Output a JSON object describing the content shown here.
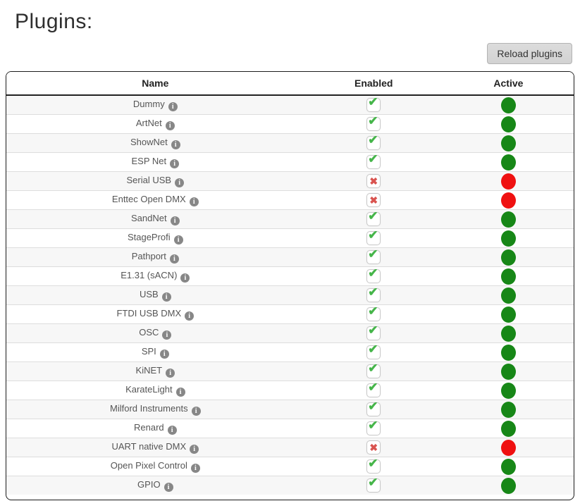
{
  "page": {
    "title": "Plugins:"
  },
  "toolbar": {
    "reload_label": "Reload plugins"
  },
  "icons": {
    "info": "i",
    "check": "✔",
    "cross": "✖"
  },
  "colors": {
    "active_green": "#178717",
    "inactive_red": "#ef1111",
    "check_green": "#45b549",
    "cross_red": "#d9534f"
  },
  "table": {
    "columns": [
      "Name",
      "Enabled",
      "Active"
    ],
    "rows": [
      {
        "name": "Dummy",
        "enabled": true,
        "active": true
      },
      {
        "name": "ArtNet",
        "enabled": true,
        "active": true
      },
      {
        "name": "ShowNet",
        "enabled": true,
        "active": true
      },
      {
        "name": "ESP Net",
        "enabled": true,
        "active": true
      },
      {
        "name": "Serial USB",
        "enabled": false,
        "active": false
      },
      {
        "name": "Enttec Open DMX",
        "enabled": false,
        "active": false
      },
      {
        "name": "SandNet",
        "enabled": true,
        "active": true
      },
      {
        "name": "StageProfi",
        "enabled": true,
        "active": true
      },
      {
        "name": "Pathport",
        "enabled": true,
        "active": true
      },
      {
        "name": "E1.31 (sACN)",
        "enabled": true,
        "active": true
      },
      {
        "name": "USB",
        "enabled": true,
        "active": true
      },
      {
        "name": "FTDI USB DMX",
        "enabled": true,
        "active": true
      },
      {
        "name": "OSC",
        "enabled": true,
        "active": true
      },
      {
        "name": "SPI",
        "enabled": true,
        "active": true
      },
      {
        "name": "KiNET",
        "enabled": true,
        "active": true
      },
      {
        "name": "KarateLight",
        "enabled": true,
        "active": true
      },
      {
        "name": "Milford Instruments",
        "enabled": true,
        "active": true
      },
      {
        "name": "Renard",
        "enabled": true,
        "active": true
      },
      {
        "name": "UART native DMX",
        "enabled": false,
        "active": false
      },
      {
        "name": "Open Pixel Control",
        "enabled": true,
        "active": true
      },
      {
        "name": "GPIO",
        "enabled": true,
        "active": true
      }
    ]
  }
}
